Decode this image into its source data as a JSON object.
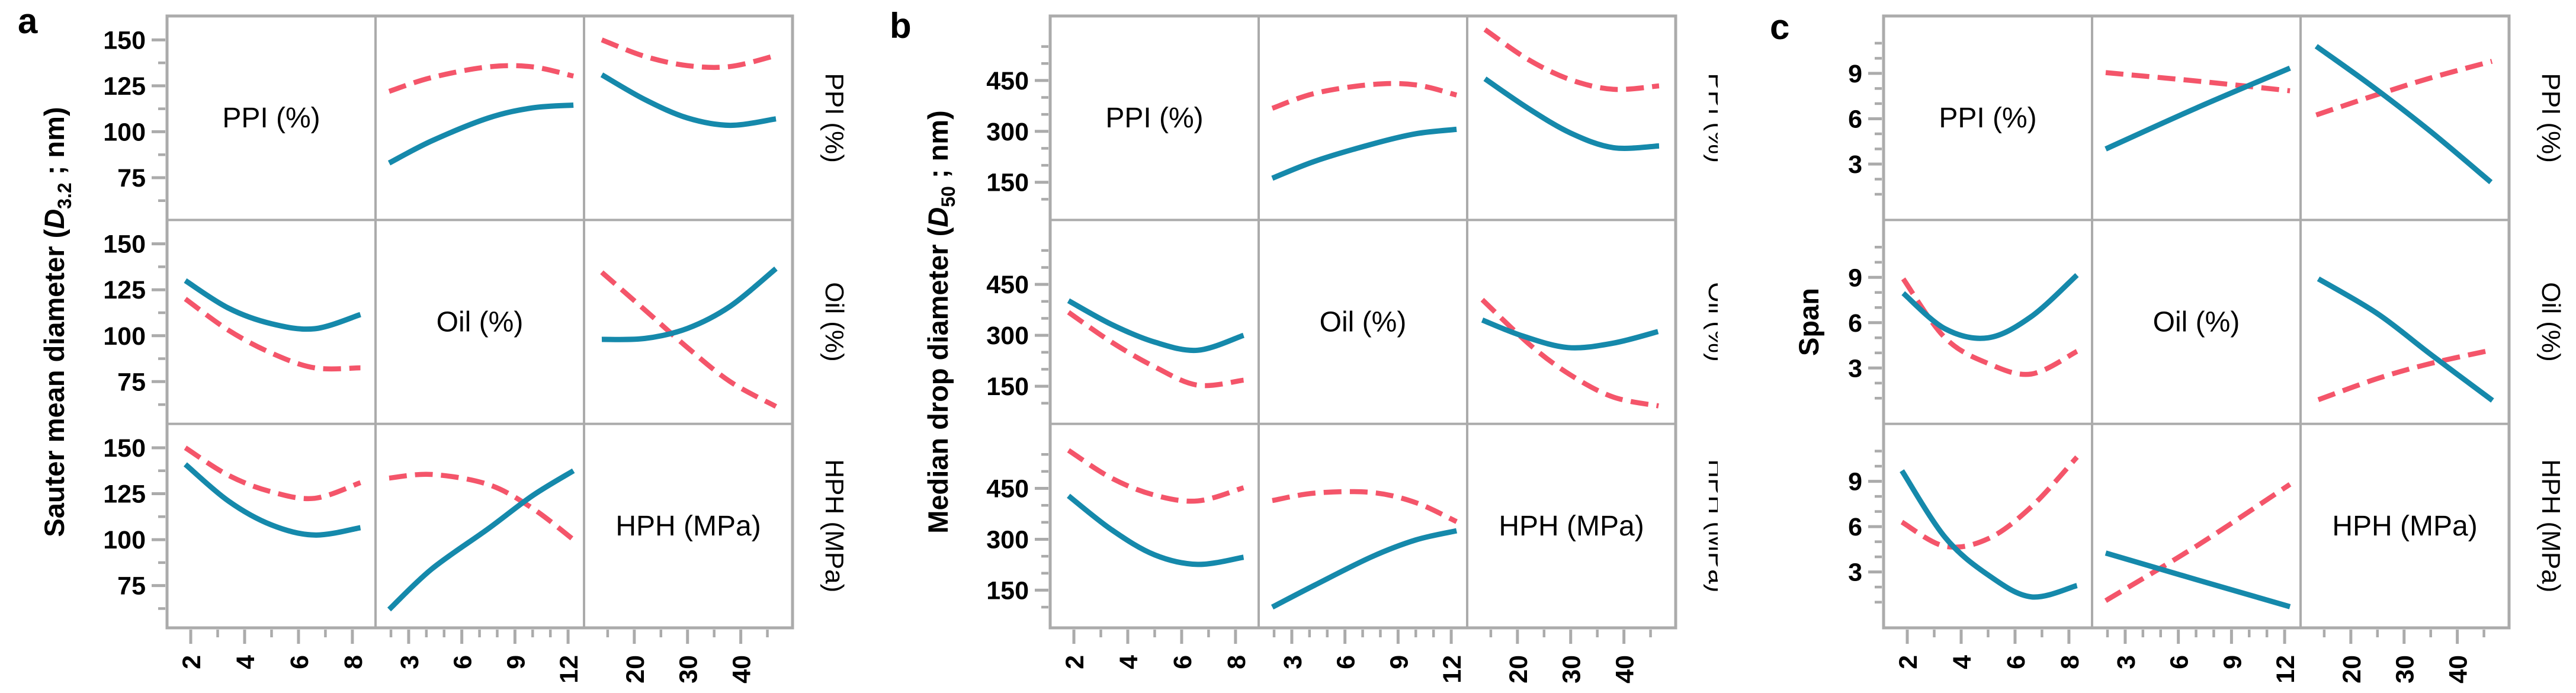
{
  "style": {
    "background": "#ffffff",
    "solid_line_color": "#1589ab",
    "dashed_line_color": "#f4556a",
    "grid_color": "#ababab",
    "text_color": "#000000"
  },
  "chart_data": {
    "type": "line",
    "layout_kind": "3x3 interaction-profile matrix, three panels",
    "factors": [
      "PPI (%)",
      "Oil (%)",
      "HPH (MPa)"
    ],
    "series_styles": [
      {
        "name": "dashed",
        "stroke": "dashed",
        "color_key": "dashed_line_color"
      },
      {
        "name": "solid",
        "stroke": "solid",
        "color_key": "solid_line_color"
      }
    ],
    "x_axes": [
      {
        "factor": "PPI (%)",
        "majors": [
          2,
          4,
          6,
          8
        ],
        "minors": [
          3,
          5,
          7
        ],
        "range": [
          1.12,
          8.86
        ]
      },
      {
        "factor": "Oil (%)",
        "majors": [
          3,
          6,
          9,
          12
        ],
        "minors": [
          2,
          4,
          5,
          7,
          8,
          10,
          11
        ],
        "range": [
          1.13,
          12.9
        ]
      },
      {
        "factor": "HPH (MPa)",
        "majors": [
          20,
          30,
          40
        ],
        "minors": [
          15,
          25,
          35,
          45
        ],
        "range": [
          10.56,
          49.72
        ]
      }
    ],
    "panels": [
      {
        "letter": "a",
        "y_title": {
          "pre": "Sauter mean diameter (",
          "var": "D",
          "sub": "3.2",
          "post": " ; nm)"
        },
        "y_axis": {
          "majors": [
            150,
            125,
            100,
            75
          ],
          "minors": [
            137.5,
            112.5,
            87.5,
            62.5
          ],
          "range": [
            52,
            163
          ]
        },
        "cells": [
          {
            "row": 1,
            "col": 2,
            "dashed": [
              [
                1.9,
                122
              ],
              [
                4.3,
                129.5
              ],
              [
                7.5,
                135.3
              ],
              [
                10,
                135.3
              ],
              [
                12.3,
                130.3
              ]
            ],
            "solid": [
              [
                1.9,
                83
              ],
              [
                4.3,
                95
              ],
              [
                7.5,
                107.5
              ],
              [
                10,
                113
              ],
              [
                12.3,
                114.5
              ]
            ]
          },
          {
            "row": 1,
            "col": 3,
            "dashed": [
              [
                13.9,
                150
              ],
              [
                22,
                141
              ],
              [
                30,
                136
              ],
              [
                38,
                135.5
              ],
              [
                46.6,
                141.5
              ]
            ],
            "solid": [
              [
                13.9,
                131
              ],
              [
                22,
                117.5
              ],
              [
                30,
                107.5
              ],
              [
                38,
                103.5
              ],
              [
                46.6,
                107
              ]
            ]
          },
          {
            "row": 2,
            "col": 1,
            "dashed": [
              [
                1.8,
                120
              ],
              [
                3.4,
                103
              ],
              [
                5,
                90.5
              ],
              [
                6.6,
                82.5
              ],
              [
                8.3,
                82.5
              ]
            ],
            "solid": [
              [
                1.8,
                130
              ],
              [
                3.4,
                115
              ],
              [
                5,
                106.5
              ],
              [
                6.6,
                103.8
              ],
              [
                8.3,
                111.5
              ]
            ]
          },
          {
            "row": 2,
            "col": 3,
            "dashed": [
              [
                13.9,
                134.5
              ],
              [
                22,
                114
              ],
              [
                30,
                93.5
              ],
              [
                38,
                75
              ],
              [
                46.6,
                61.5
              ]
            ],
            "solid": [
              [
                13.9,
                98
              ],
              [
                22,
                98.5
              ],
              [
                30,
                104
              ],
              [
                38,
                116
              ],
              [
                46.6,
                136.5
              ]
            ]
          },
          {
            "row": 3,
            "col": 1,
            "dashed": [
              [
                1.8,
                150
              ],
              [
                3.4,
                135
              ],
              [
                5,
                126
              ],
              [
                6.6,
                122.5
              ],
              [
                8.3,
                131
              ]
            ],
            "solid": [
              [
                1.8,
                141
              ],
              [
                3.4,
                121
              ],
              [
                5,
                108
              ],
              [
                6.6,
                102.5
              ],
              [
                8.3,
                106.5
              ]
            ]
          },
          {
            "row": 3,
            "col": 2,
            "dashed": [
              [
                1.9,
                133.5
              ],
              [
                4.3,
                135.5
              ],
              [
                7.5,
                130
              ],
              [
                10,
                117
              ],
              [
                12.3,
                100
              ]
            ],
            "solid": [
              [
                1.9,
                62
              ],
              [
                4.3,
                84
              ],
              [
                7.5,
                106
              ],
              [
                10,
                124
              ],
              [
                12.3,
                137.5
              ]
            ]
          }
        ]
      },
      {
        "letter": "b",
        "y_title": {
          "pre": "Median drop diameter (",
          "var": "D",
          "sub": "50",
          "post": " ; nm)"
        },
        "y_axis": {
          "majors": [
            450,
            300,
            150
          ],
          "minors": [
            550,
            500,
            400,
            350,
            250,
            200,
            100
          ],
          "range": [
            39,
            640
          ]
        },
        "cells": [
          {
            "row": 1,
            "col": 2,
            "dashed": [
              [
                1.9,
                368
              ],
              [
                4.3,
                412
              ],
              [
                7.5,
                438
              ],
              [
                10,
                437
              ],
              [
                12.3,
                407
              ]
            ],
            "solid": [
              [
                1.9,
                162
              ],
              [
                4.3,
                212
              ],
              [
                7.5,
                262
              ],
              [
                10,
                293
              ],
              [
                12.3,
                306
              ]
            ]
          },
          {
            "row": 1,
            "col": 3,
            "dashed": [
              [
                13.9,
                600
              ],
              [
                22,
                512
              ],
              [
                30,
                452
              ],
              [
                38,
                424
              ],
              [
                46.6,
                434
              ]
            ],
            "solid": [
              [
                13.9,
                455
              ],
              [
                22,
                368
              ],
              [
                30,
                295
              ],
              [
                38,
                252
              ],
              [
                46.6,
                257
              ]
            ]
          },
          {
            "row": 2,
            "col": 1,
            "dashed": [
              [
                1.8,
                368
              ],
              [
                3.4,
                280
              ],
              [
                5,
                207
              ],
              [
                6.6,
                153
              ],
              [
                8.3,
                168
              ]
            ],
            "solid": [
              [
                1.8,
                402
              ],
              [
                3.4,
                332
              ],
              [
                5,
                280
              ],
              [
                6.6,
                256
              ],
              [
                8.3,
                300
              ]
            ]
          },
          {
            "row": 2,
            "col": 3,
            "dashed": [
              [
                13.4,
                405
              ],
              [
                22.5,
                270
              ],
              [
                30,
                183
              ],
              [
                38,
                118
              ],
              [
                46.5,
                92
              ]
            ],
            "solid": [
              [
                13.4,
                345
              ],
              [
                21,
                298
              ],
              [
                29.5,
                264
              ],
              [
                38,
                277
              ],
              [
                46.4,
                311
              ]
            ]
          },
          {
            "row": 3,
            "col": 1,
            "dashed": [
              [
                1.8,
                562
              ],
              [
                3.4,
                480
              ],
              [
                5,
                430
              ],
              [
                6.6,
                413
              ],
              [
                8.3,
                452
              ]
            ],
            "solid": [
              [
                1.8,
                428
              ],
              [
                3.4,
                328
              ],
              [
                5,
                254
              ],
              [
                6.6,
                226
              ],
              [
                8.3,
                247
              ]
            ]
          },
          {
            "row": 3,
            "col": 2,
            "dashed": [
              [
                1.9,
                414
              ],
              [
                4.3,
                436
              ],
              [
                7.5,
                438
              ],
              [
                10,
                408
              ],
              [
                12.3,
                352
              ]
            ],
            "solid": [
              [
                1.9,
                100
              ],
              [
                4.3,
                165
              ],
              [
                7.5,
                248
              ],
              [
                10,
                298
              ],
              [
                12.3,
                325
              ]
            ]
          }
        ]
      },
      {
        "letter": "c",
        "y_title": {
          "pre": "Span",
          "var": "",
          "sub": "",
          "post": ""
        },
        "y_axis": {
          "majors": [
            9,
            6,
            3
          ],
          "minors": [
            11,
            10,
            8,
            7,
            5,
            4,
            2,
            1
          ],
          "range": [
            -0.7,
            12.8
          ]
        },
        "cells": [
          {
            "row": 1,
            "col": 2,
            "dashed": [
              [
                1.9,
                9.05
              ],
              [
                7,
                8.5
              ],
              [
                12.3,
                7.85
              ]
            ],
            "solid": [
              [
                1.9,
                4.0
              ],
              [
                7,
                6.7
              ],
              [
                12.3,
                9.35
              ]
            ]
          },
          {
            "row": 1,
            "col": 3,
            "dashed": [
              [
                13.5,
                6.25
              ],
              [
                25,
                7.6
              ],
              [
                35,
                8.7
              ],
              [
                46.5,
                9.8
              ]
            ],
            "solid": [
              [
                13.5,
                10.8
              ],
              [
                24,
                8.15
              ],
              [
                35,
                5.15
              ],
              [
                46.3,
                1.8
              ]
            ]
          },
          {
            "row": 2,
            "col": 1,
            "dashed": [
              [
                1.85,
                8.9
              ],
              [
                3.4,
                5.0
              ],
              [
                5,
                3.3
              ],
              [
                6.6,
                2.6
              ],
              [
                8.3,
                4.1
              ]
            ],
            "solid": [
              [
                1.85,
                7.95
              ],
              [
                3.4,
                5.6
              ],
              [
                5,
                5.0
              ],
              [
                6.6,
                6.4
              ],
              [
                8.3,
                9.15
              ]
            ]
          },
          {
            "row": 2,
            "col": 3,
            "dashed": [
              [
                13.9,
                0.9
              ],
              [
                25,
                2.3
              ],
              [
                35,
                3.3
              ],
              [
                46.6,
                4.2
              ]
            ],
            "solid": [
              [
                13.9,
                8.9
              ],
              [
                25,
                6.6
              ],
              [
                35,
                3.9
              ],
              [
                46.6,
                0.85
              ]
            ]
          },
          {
            "row": 3,
            "col": 1,
            "dashed": [
              [
                1.8,
                6.3
              ],
              [
                3.4,
                4.7
              ],
              [
                5,
                5.2
              ],
              [
                6.6,
                7.3
              ],
              [
                8.3,
                10.6
              ]
            ],
            "solid": [
              [
                1.8,
                9.7
              ],
              [
                3.4,
                5.3
              ],
              [
                5,
                2.8
              ],
              [
                6.6,
                1.35
              ],
              [
                8.3,
                2.1
              ]
            ]
          },
          {
            "row": 3,
            "col": 2,
            "dashed": [
              [
                1.9,
                1.1
              ],
              [
                7,
                4.7
              ],
              [
                12.3,
                8.8
              ]
            ],
            "solid": [
              [
                1.9,
                4.25
              ],
              [
                7,
                2.5
              ],
              [
                12.3,
                0.7
              ]
            ]
          }
        ]
      }
    ]
  }
}
